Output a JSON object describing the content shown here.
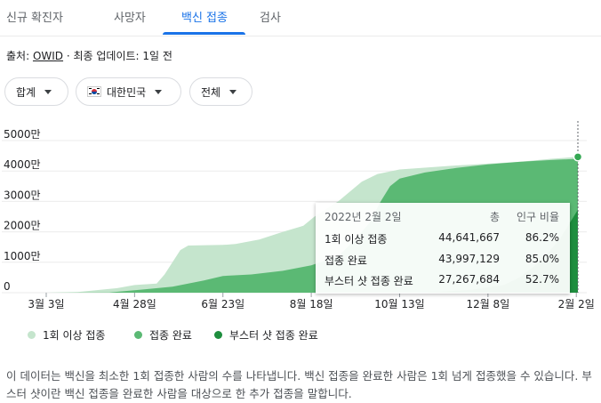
{
  "tabs": [
    {
      "label": "신규 확진자"
    },
    {
      "label": "사망자"
    },
    {
      "label": "백신 접종"
    },
    {
      "label": "검사"
    }
  ],
  "source": {
    "prefix": "출처: ",
    "link": "OWID",
    "suffix": " · 최종 업데이트: 1일 전"
  },
  "filters": {
    "metric": "합계",
    "country": "대한민국",
    "range": "전체"
  },
  "chart_data": {
    "type": "area",
    "y_ticks": [
      "5000만",
      "4000만",
      "3000만",
      "2000만",
      "1000만",
      "0"
    ],
    "y_tick_values": [
      50000000,
      40000000,
      30000000,
      20000000,
      10000000,
      0
    ],
    "ylim": [
      0,
      50000000
    ],
    "x_ticks": [
      "3월 3일",
      "4월 28일",
      "6월 23일",
      "8월 18일",
      "10월 13일",
      "12월 8일",
      "2월 2일"
    ],
    "x_index_range": [
      0,
      337
    ],
    "x_tick_index": [
      0,
      56,
      112,
      168,
      224,
      280,
      336
    ],
    "series": [
      {
        "name": "1회 이상 접종",
        "color": "#c5e5cd",
        "points": [
          [
            0,
            0
          ],
          [
            20,
            200000
          ],
          [
            45,
            1500000
          ],
          [
            56,
            2500000
          ],
          [
            70,
            3000000
          ],
          [
            75,
            6000000
          ],
          [
            80,
            10000000
          ],
          [
            85,
            14000000
          ],
          [
            90,
            15500000
          ],
          [
            112,
            15700000
          ],
          [
            120,
            16000000
          ],
          [
            135,
            17500000
          ],
          [
            150,
            20000000
          ],
          [
            163,
            22000000
          ],
          [
            170,
            25000000
          ],
          [
            185,
            30000000
          ],
          [
            200,
            36500000
          ],
          [
            210,
            39000000
          ],
          [
            224,
            40500000
          ],
          [
            260,
            41800000
          ],
          [
            300,
            43000000
          ],
          [
            320,
            44000000
          ],
          [
            337,
            44641667
          ]
        ]
      },
      {
        "name": "접종 완료",
        "color": "#5bb974",
        "points": [
          [
            0,
            0
          ],
          [
            40,
            100000
          ],
          [
            60,
            1000000
          ],
          [
            80,
            2000000
          ],
          [
            100,
            4000000
          ],
          [
            112,
            5500000
          ],
          [
            130,
            6000000
          ],
          [
            150,
            7200000
          ],
          [
            168,
            9000000
          ],
          [
            185,
            12000000
          ],
          [
            195,
            17000000
          ],
          [
            205,
            23000000
          ],
          [
            212,
            30000000
          ],
          [
            218,
            35000000
          ],
          [
            224,
            37500000
          ],
          [
            240,
            39500000
          ],
          [
            260,
            41000000
          ],
          [
            280,
            42200000
          ],
          [
            300,
            43000000
          ],
          [
            320,
            43600000
          ],
          [
            337,
            43997129
          ]
        ]
      },
      {
        "name": "부스터 샷 접종 완료",
        "color": "#1e8e3e",
        "points": [
          [
            0,
            0
          ],
          [
            234,
            0
          ],
          [
            250,
            300000
          ],
          [
            270,
            1000000
          ],
          [
            290,
            2500000
          ],
          [
            300,
            5000000
          ],
          [
            310,
            9000000
          ],
          [
            318,
            13000000
          ],
          [
            326,
            18000000
          ],
          [
            332,
            23000000
          ],
          [
            337,
            27267684
          ]
        ]
      }
    ]
  },
  "tooltip": {
    "date": "2022년 2월 2일",
    "col_total": "총",
    "col_pct": "인구 비율",
    "rows": [
      {
        "label": "1회 이상 접종",
        "total": "44,641,667",
        "pct": "86.2%"
      },
      {
        "label": "접종 완료",
        "total": "43,997,129",
        "pct": "85.0%"
      },
      {
        "label": "부스터 샷 접종 완료",
        "total": "27,267,684",
        "pct": "52.7%"
      }
    ]
  },
  "legend": [
    {
      "label": "1회 이상 접종",
      "color": "#c5e5cd"
    },
    {
      "label": "접종 완료",
      "color": "#5bb974"
    },
    {
      "label": "부스터 샷 접종 완료",
      "color": "#1e8e3e"
    }
  ],
  "description": "이 데이터는 백신을 최소한 1회 접종한 사람의 수를 나타냅니다. 백신 접종을 완료한 사람은 1회 넘게 접종했을 수 있습니다. 부스터 샷이란 백신 접종을 완료한 사람을 대상으로 한 추가 접종을 말합니다."
}
